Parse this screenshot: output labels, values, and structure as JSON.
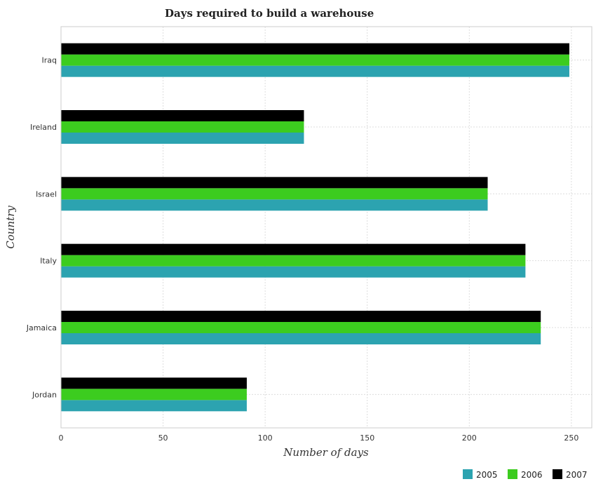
{
  "chart_data": {
    "type": "bar",
    "orientation": "horizontal",
    "title": "Days required to build a warehouse",
    "xlabel": "Number of days",
    "ylabel": "Country",
    "categories": [
      "Iraq",
      "Ireland",
      "Israel",
      "Italy",
      "Jamaica",
      "Jordan"
    ],
    "series": [
      {
        "name": "2005",
        "color": "#2ca3b0",
        "values": [
          249,
          119,
          209,
          227.5,
          235,
          91
        ]
      },
      {
        "name": "2006",
        "color": "#3ccc1f",
        "values": [
          249,
          119,
          209,
          227.5,
          235,
          91
        ]
      },
      {
        "name": "2007",
        "color": "#000000",
        "values": [
          249,
          119,
          209,
          227.5,
          235,
          91
        ]
      }
    ],
    "xlim": [
      0,
      260
    ],
    "xticks": [
      0,
      50,
      100,
      150,
      200,
      250
    ],
    "grid": true,
    "legend_position": "bottom-right"
  }
}
